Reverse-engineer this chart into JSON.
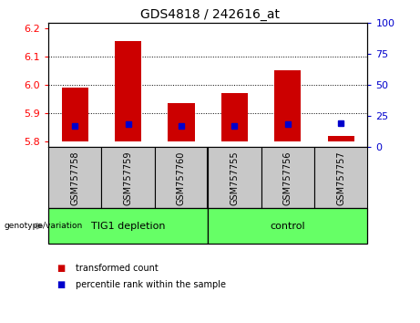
{
  "title": "GDS4818 / 242616_at",
  "samples": [
    "GSM757758",
    "GSM757759",
    "GSM757760",
    "GSM757755",
    "GSM757756",
    "GSM757757"
  ],
  "group_labels": [
    "TIG1 depletion",
    "control"
  ],
  "bar_baseline": 5.8,
  "transformed_count": [
    5.99,
    6.155,
    5.935,
    5.97,
    6.05,
    5.82
  ],
  "percentile_rank_value": [
    5.855,
    5.862,
    5.854,
    5.854,
    5.862,
    5.864
  ],
  "ylim_left": [
    5.78,
    6.22
  ],
  "ylim_right": [
    0,
    100
  ],
  "yticks_left": [
    5.8,
    5.9,
    6.0,
    6.1,
    6.2
  ],
  "yticks_right": [
    0,
    25,
    50,
    75,
    100
  ],
  "left_tick_color": "#FF0000",
  "right_tick_color": "#0000CC",
  "bar_color": "#CC0000",
  "dot_color": "#0000CC",
  "bg_plot": "#FFFFFF",
  "bg_sample": "#C8C8C8",
  "bg_group": "#66FF66",
  "legend_red_label": "transformed count",
  "legend_blue_label": "percentile rank within the sample",
  "genotype_label": "genotype/variation",
  "title_fontsize": 10,
  "tick_fontsize": 8,
  "label_fontsize": 7,
  "group_fontsize": 8,
  "grid_ticks": [
    5.9,
    6.0,
    6.1
  ]
}
